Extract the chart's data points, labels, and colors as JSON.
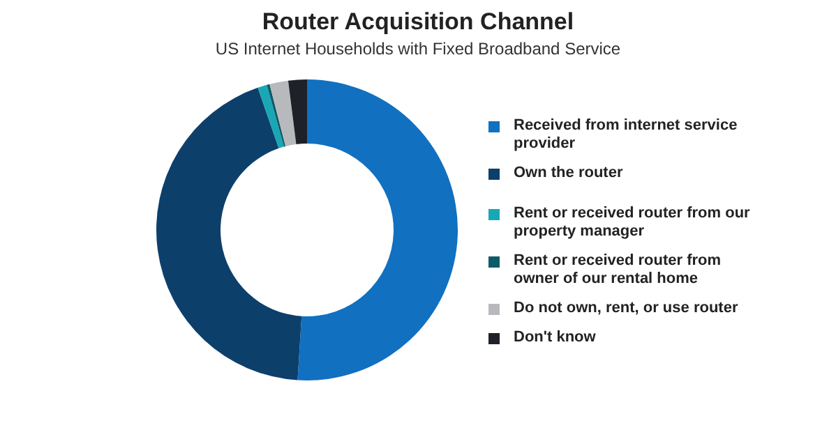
{
  "chart_data": {
    "type": "donut",
    "title": "Router Acquisition Channel",
    "subtitle": "US Internet Households with Fixed Broadband Service",
    "categories": [
      "Received from internet service provider",
      "Own the router",
      "Rent or received router from our property manager",
      "Rent or received router from owner of our rental home",
      "Do not own, rent, or use router",
      "Don't know"
    ],
    "values": [
      51,
      43.7,
      1,
      0.3,
      2,
      2
    ],
    "colors": [
      "#1170c0",
      "#0d3f6b",
      "#19a7b5",
      "#0f5a66",
      "#b7b9bc",
      "#1e2228"
    ],
    "legend": "right"
  }
}
